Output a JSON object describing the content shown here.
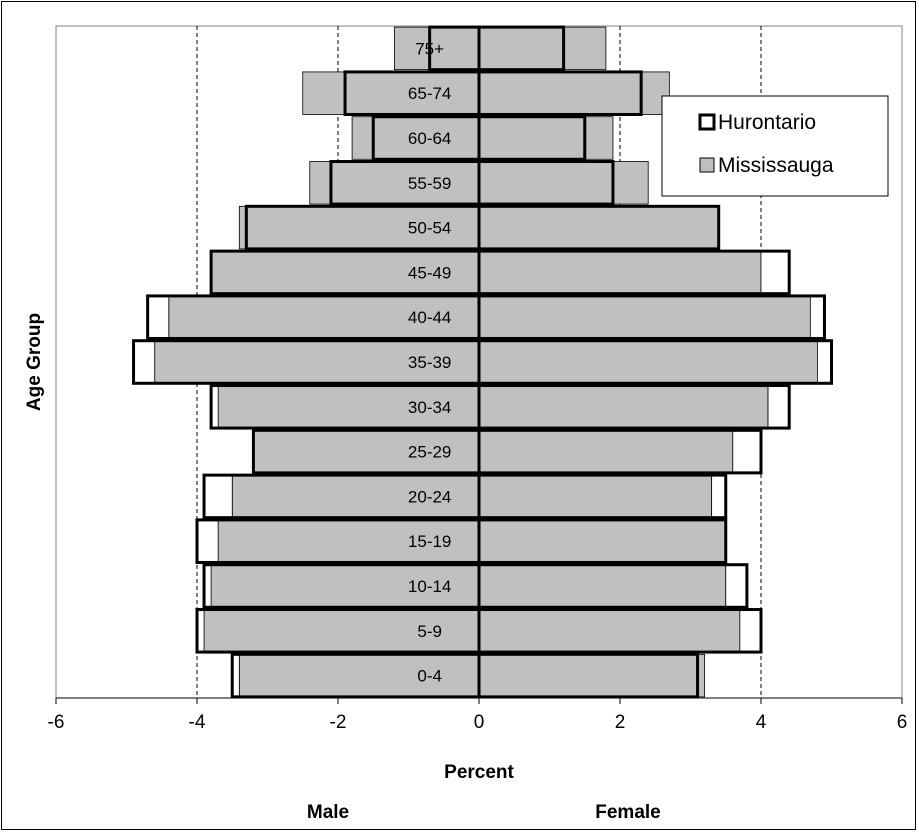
{
  "chart_data": {
    "type": "bar",
    "orientation": "horizontal-population-pyramid",
    "categories": [
      "0-4",
      "5-9",
      "10-14",
      "15-19",
      "20-24",
      "25-29",
      "30-34",
      "35-39",
      "40-44",
      "45-49",
      "50-54",
      "55-59",
      "60-64",
      "65-74",
      "75+"
    ],
    "series": [
      {
        "name": "Hurontario",
        "style": "outline",
        "male": [
          -3.5,
          -4.0,
          -3.9,
          -4.0,
          -3.9,
          -3.2,
          -3.8,
          -4.9,
          -4.7,
          -3.8,
          -3.3,
          -2.1,
          -1.5,
          -1.9,
          -0.7
        ],
        "female": [
          3.1,
          4.0,
          3.8,
          3.5,
          3.5,
          4.0,
          4.4,
          5.0,
          4.9,
          4.4,
          3.4,
          1.9,
          1.5,
          2.3,
          1.2
        ]
      },
      {
        "name": "Mississauga",
        "style": "filled",
        "male": [
          -3.4,
          -3.9,
          -3.8,
          -3.7,
          -3.5,
          -3.2,
          -3.7,
          -4.6,
          -4.4,
          -3.8,
          -3.4,
          -2.4,
          -1.8,
          -2.5,
          -1.2
        ],
        "female": [
          3.2,
          3.7,
          3.5,
          3.5,
          3.3,
          3.6,
          4.1,
          4.8,
          4.7,
          4.0,
          3.4,
          2.4,
          1.9,
          2.7,
          1.8
        ]
      }
    ],
    "xlim": [
      -6,
      6
    ],
    "xticks": [
      "-6",
      "-4",
      "-2",
      "0",
      "2",
      "4",
      "6"
    ],
    "xtick_values": [
      -6,
      -4,
      -2,
      0,
      2,
      4,
      6
    ],
    "xlabel": "Percent",
    "ylabel": "Age Group",
    "side_labels": {
      "left": "Male",
      "right": "Female"
    },
    "grid": "vertical-dashed",
    "legend": {
      "placement": "top-right",
      "entries": [
        "Hurontario",
        "Mississauga"
      ]
    },
    "colors": {
      "fill": "#c0c0c0",
      "outline": "#000000",
      "background": "#ffffff",
      "grid": "#000000"
    }
  }
}
